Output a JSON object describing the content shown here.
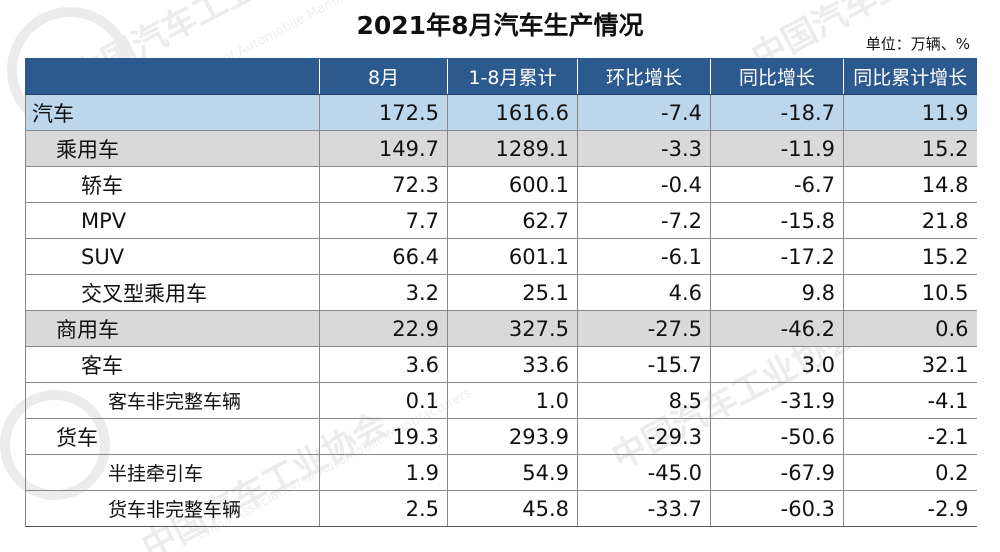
{
  "title": "2021年8月汽车生产情况",
  "unit": "单位：万辆、%",
  "watermark": {
    "cn": "中国汽车工业协会",
    "en": "China Association of Automobile Manufacturers"
  },
  "headers": [
    "",
    "8月",
    "1-8月累计",
    "环比增长",
    "同比增长",
    "同比累计增长"
  ],
  "rows": [
    {
      "name": "汽车",
      "level": 0,
      "style": "total",
      "aug": "172.5",
      "cum": "1616.6",
      "mom": "-7.4",
      "yoy": "-18.7",
      "yoy_cum": "11.9"
    },
    {
      "name": "乘用车",
      "level": 1,
      "style": "sub",
      "aug": "149.7",
      "cum": "1289.1",
      "mom": "-3.3",
      "yoy": "-11.9",
      "yoy_cum": "15.2"
    },
    {
      "name": "轿车",
      "level": 2,
      "style": "plain",
      "aug": "72.3",
      "cum": "600.1",
      "mom": "-0.4",
      "yoy": "-6.7",
      "yoy_cum": "14.8"
    },
    {
      "name": "MPV",
      "level": 2,
      "style": "plain",
      "aug": "7.7",
      "cum": "62.7",
      "mom": "-7.2",
      "yoy": "-15.8",
      "yoy_cum": "21.8"
    },
    {
      "name": "SUV",
      "level": 2,
      "style": "plain",
      "aug": "66.4",
      "cum": "601.1",
      "mom": "-6.1",
      "yoy": "-17.2",
      "yoy_cum": "15.2"
    },
    {
      "name": "交叉型乘用车",
      "level": 2,
      "style": "plain",
      "aug": "3.2",
      "cum": "25.1",
      "mom": "4.6",
      "yoy": "9.8",
      "yoy_cum": "10.5"
    },
    {
      "name": "商用车",
      "level": 1,
      "style": "sub",
      "aug": "22.9",
      "cum": "327.5",
      "mom": "-27.5",
      "yoy": "-46.2",
      "yoy_cum": "0.6"
    },
    {
      "name": "客车",
      "level": 2,
      "style": "plain",
      "aug": "3.6",
      "cum": "33.6",
      "mom": "-15.7",
      "yoy": "3.0",
      "yoy_cum": "32.1"
    },
    {
      "name": "客车非完整车辆",
      "level": 3,
      "style": "plain",
      "aug": "0.1",
      "cum": "1.0",
      "mom": "8.5",
      "yoy": "-31.9",
      "yoy_cum": "-4.1"
    },
    {
      "name": "货车",
      "level": 1,
      "style": "plain",
      "aug": "19.3",
      "cum": "293.9",
      "mom": "-29.3",
      "yoy": "-50.6",
      "yoy_cum": "-2.1"
    },
    {
      "name": "半挂牵引车",
      "level": 3,
      "style": "plain",
      "aug": "1.9",
      "cum": "54.9",
      "mom": "-45.0",
      "yoy": "-67.9",
      "yoy_cum": "0.2"
    },
    {
      "name": "货车非完整车辆",
      "level": 3,
      "style": "plain",
      "aug": "2.5",
      "cum": "45.8",
      "mom": "-33.7",
      "yoy": "-60.3",
      "yoy_cum": "-2.9"
    }
  ]
}
